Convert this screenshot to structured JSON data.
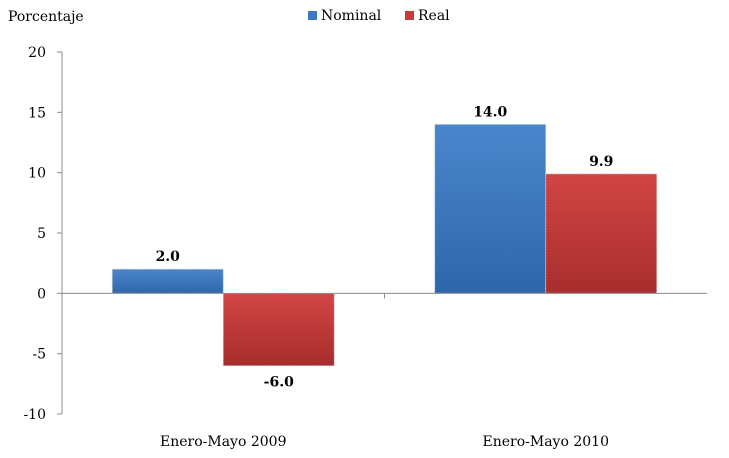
{
  "chart_data": {
    "type": "bar",
    "ylabel": "Porcentaje",
    "xlabel": "",
    "categories": [
      "Enero-Mayo 2009",
      "Enero-Mayo 2010"
    ],
    "series": [
      {
        "name": "Nominal",
        "values": [
          2.0,
          14.0
        ],
        "labels": [
          "2.0",
          "14.0"
        ],
        "color": "#3d79c0"
      },
      {
        "name": "Real",
        "values": [
          -6.0,
          9.9
        ],
        "labels": [
          "-6.0",
          "9.9"
        ],
        "color": "#c93a3a"
      }
    ],
    "ylim": [
      -10,
      20
    ],
    "yticks": [
      20,
      15,
      10,
      5,
      0,
      -5,
      -10
    ],
    "legend_position": "top-center",
    "grid": false
  }
}
